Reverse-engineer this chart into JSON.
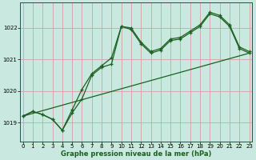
{
  "bg_color": "#c8e8e0",
  "plot_bg_color": "#c8e8e0",
  "grid_color": "#d8a0a0",
  "line_color": "#1a6020",
  "title": "Graphe pression niveau de la mer (hPa)",
  "ytick_labels": [
    "1019",
    "1020",
    "1021",
    "1022"
  ],
  "yticks": [
    1019,
    1020,
    1021,
    1022
  ],
  "ylim": [
    1018.4,
    1022.8
  ],
  "xlim": [
    -0.3,
    23.3
  ],
  "xticks": [
    0,
    1,
    2,
    3,
    4,
    5,
    6,
    7,
    8,
    9,
    10,
    11,
    12,
    13,
    14,
    15,
    16,
    17,
    18,
    19,
    20,
    21,
    22,
    23
  ],
  "line1_x": [
    0,
    1,
    2,
    3,
    4,
    5,
    6,
    7,
    8,
    9,
    10,
    11,
    12,
    13,
    14,
    15,
    16,
    17,
    18,
    19,
    20,
    21,
    22,
    23
  ],
  "line1_y": [
    1019.2,
    1019.35,
    1019.25,
    1019.1,
    1018.75,
    1019.3,
    1019.75,
    1020.5,
    1020.75,
    1020.85,
    1022.05,
    1021.95,
    1021.5,
    1021.2,
    1021.3,
    1021.6,
    1021.65,
    1021.85,
    1022.05,
    1022.45,
    1022.35,
    1022.05,
    1021.35,
    1021.2
  ],
  "line2_x": [
    0,
    1,
    2,
    3,
    4,
    5,
    6,
    7,
    8,
    9,
    10,
    11,
    12,
    13,
    14,
    15,
    16,
    17,
    18,
    19,
    20,
    21,
    22,
    23
  ],
  "line2_y": [
    1019.2,
    1019.35,
    1019.25,
    1019.1,
    1018.75,
    1019.4,
    1020.05,
    1020.55,
    1020.8,
    1021.05,
    1022.05,
    1022.0,
    1021.55,
    1021.25,
    1021.35,
    1021.65,
    1021.7,
    1021.9,
    1022.1,
    1022.5,
    1022.4,
    1022.1,
    1021.4,
    1021.25
  ],
  "line3_x": [
    0,
    23
  ],
  "line3_y": [
    1019.2,
    1021.2
  ],
  "title_fontsize": 6,
  "tick_fontsize": 5
}
